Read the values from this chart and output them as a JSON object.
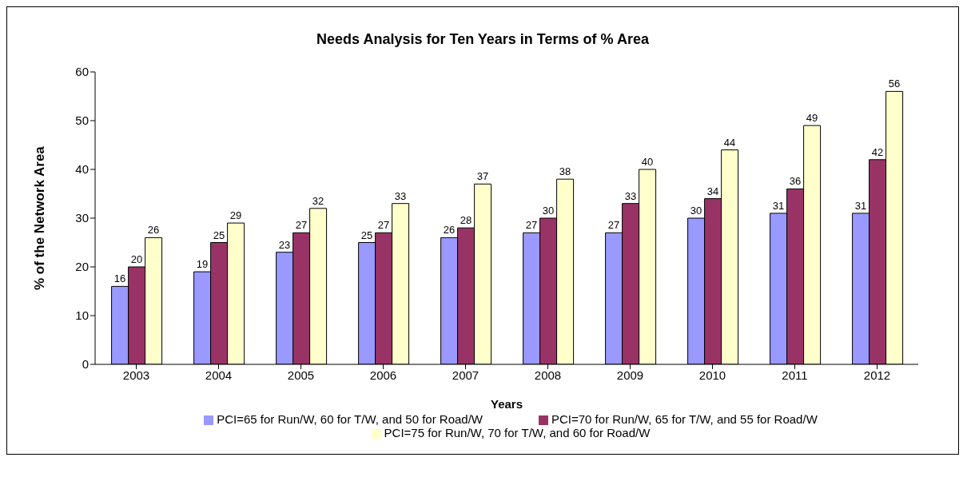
{
  "chart_data": {
    "type": "bar",
    "title": "Needs Analysis for Ten Years in Terms of % Area",
    "xlabel": "Years",
    "ylabel": "% of the Network Area",
    "categories": [
      "2003",
      "2004",
      "2005",
      "2006",
      "2007",
      "2008",
      "2009",
      "2010",
      "2011",
      "2012"
    ],
    "series": [
      {
        "name": "PCI=65 for Run/W, 60 for T/W, and 50 for Road/W",
        "color": "#9999ff",
        "values": [
          16,
          19,
          23,
          25,
          26,
          27,
          27,
          30,
          31,
          31
        ]
      },
      {
        "name": "PCI=70 for Run/W, 65 for T/W, and 55 for Road/W",
        "color": "#993366",
        "values": [
          20,
          25,
          27,
          27,
          28,
          30,
          33,
          34,
          36,
          42
        ]
      },
      {
        "name": "PCI=75 for Run/W, 70 for T/W, and 60 for Road/W",
        "color": "#ffffcc",
        "values": [
          26,
          29,
          32,
          33,
          37,
          38,
          40,
          44,
          49,
          56
        ]
      }
    ],
    "ylim": [
      0,
      60
    ],
    "yticks": [
      0,
      10,
      20,
      30,
      40,
      50,
      60
    ],
    "grid": false,
    "legend": "bottom",
    "data_labels": true
  }
}
